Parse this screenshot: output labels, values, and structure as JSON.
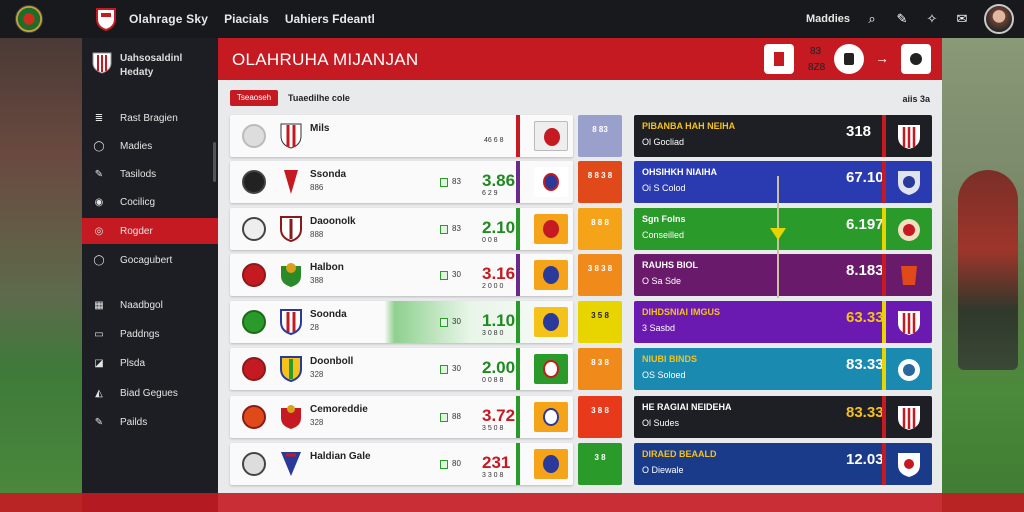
{
  "topbar": {
    "title": "Olahrage Sky",
    "links": [
      "Piacials",
      "Uahiers Fdeantl"
    ],
    "right_label": "Maddies"
  },
  "sidebar": {
    "brand_line1": "Uahsosaldinl",
    "brand_line2": "Hedaty",
    "items": [
      {
        "label": "Rast Bragien",
        "icon": "≣"
      },
      {
        "label": "Madies",
        "icon": "◯"
      },
      {
        "label": "Tasilods",
        "icon": "✎"
      },
      {
        "label": "Cocilicg",
        "icon": "◉"
      },
      {
        "label": "Rogder",
        "icon": "◎",
        "active": true
      },
      {
        "label": "Gocagubert",
        "icon": "◯"
      },
      {
        "label": "Naadbgol",
        "icon": "▦"
      },
      {
        "label": "Paddngs",
        "icon": "▭"
      },
      {
        "label": "Plsda",
        "icon": "◪"
      },
      {
        "label": "Biad Gegues",
        "icon": "◭"
      },
      {
        "label": "Pailds",
        "icon": "✎"
      }
    ]
  },
  "main": {
    "header_title": "OLAHRUHA MIJANJAN",
    "header_num1": "83",
    "header_num2": "8Z8",
    "chip": "Tseaoseh",
    "chip_label": "Tuaedilhe cole",
    "top_right_label": "aiis 3a",
    "rows": [
      {
        "team": "Mils",
        "sub": "",
        "score": "",
        "small": "46 6 8",
        "box": ""
      },
      {
        "team": "Ssonda",
        "sub": "886",
        "score": "3.86",
        "small": "6 2 9",
        "box": "83"
      },
      {
        "team": "Daoonolk",
        "sub": "888",
        "score": "2.10",
        "small": "0 0 8",
        "box": "83"
      },
      {
        "team": "Halbon",
        "sub": "388",
        "score": "3.16",
        "small": "2 0 0 0",
        "box": "30"
      },
      {
        "team": "Soonda",
        "sub": "28",
        "score": "1.10",
        "small": "3 0 8 0",
        "box": "30"
      },
      {
        "team": "Doonboll",
        "sub": "328",
        "score": "2.00",
        "small": "0 0 8 8",
        "box": "30"
      },
      {
        "team": "Cemoreddie",
        "sub": "328",
        "score": "3.72",
        "small": "3 5 0 8",
        "box": "88"
      },
      {
        "team": "Haldian Gale",
        "sub": "",
        "score": "231",
        "small": "3 3 0 8",
        "box": "80"
      }
    ],
    "pills": [
      "8 83",
      "8 8 3 8",
      "8 8 8",
      "3 8 3 8",
      "3 5 8",
      "8 3 8",
      "3 8 8",
      "3 8"
    ],
    "cards": [
      {
        "title": "PIBANBA HAH NEIHA",
        "sub": "Ol  Gocliad",
        "value": "318"
      },
      {
        "title": "OHSIHKH NIAIHA",
        "sub": "Oi  S Colod",
        "value": "67.10"
      },
      {
        "title": "Sgn Folns",
        "sub": "Conseilled",
        "value": "6.197"
      },
      {
        "title": "RAUHS BIOL",
        "sub": "O  Sa Sde",
        "value": "8.183"
      },
      {
        "title": "DIHDSNIAI IMGUS",
        "sub": "3  Sasbd",
        "value": "63.33"
      },
      {
        "title": "NIUBI BINDS",
        "sub": "OS  Soloed",
        "value": "83.33"
      },
      {
        "title": "HE RAGIAI NEIDEHA",
        "sub": "Ol  Sudes",
        "value": "83.33"
      },
      {
        "title": "DIRAED BEAALD",
        "sub": "O  Diewale",
        "value": "12.03"
      }
    ]
  },
  "colors": {
    "accent": "#c51a22",
    "sidebar_bg": "#1c1e23",
    "topbar_bg": "#17191d"
  }
}
